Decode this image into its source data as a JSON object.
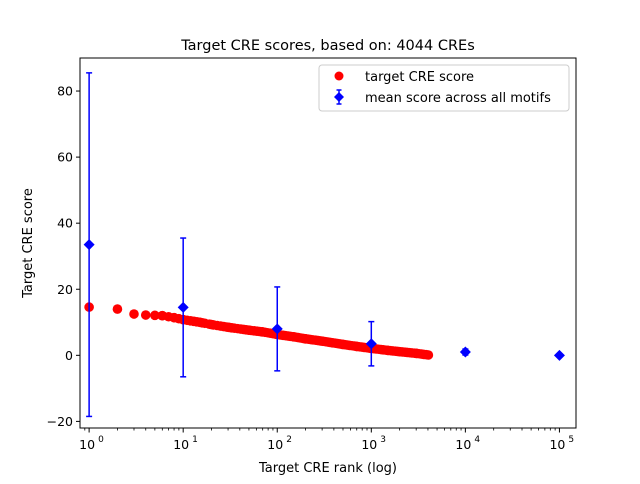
{
  "chart_data": {
    "type": "scatter",
    "title": "Target CRE scores, based on: 4044 CREs",
    "xlabel": "Target CRE rank (log)",
    "ylabel": "Target CRE score",
    "xscale": "log",
    "xlim": [
      0.8,
      150000
    ],
    "ylim": [
      -22,
      90
    ],
    "yticks": [
      -20,
      0,
      20,
      40,
      60,
      80
    ],
    "xticks": [
      {
        "value": 1,
        "base": "10",
        "exp": "0"
      },
      {
        "value": 10,
        "base": "10",
        "exp": "1"
      },
      {
        "value": 100,
        "base": "10",
        "exp": "2"
      },
      {
        "value": 1000,
        "base": "10",
        "exp": "3"
      },
      {
        "value": 10000,
        "base": "10",
        "exp": "4"
      },
      {
        "value": 100000,
        "base": "10",
        "exp": "5"
      }
    ],
    "grid": false,
    "legend": {
      "position": "top-right"
    },
    "colors": {
      "target": "#ff0000",
      "mean": "#0000ff"
    },
    "series": [
      {
        "name": "target CRE score",
        "marker": "circle",
        "x": [
          1,
          2,
          3,
          4,
          5,
          6,
          8,
          10,
          15,
          20,
          30,
          50,
          70,
          100,
          150,
          200,
          300,
          500,
          700,
          1000,
          1500,
          2000,
          3000,
          4044
        ],
        "y": [
          14.6,
          14.0,
          12.5,
          12.2,
          12.1,
          12.0,
          11.4,
          10.8,
          10.0,
          9.3,
          8.5,
          7.6,
          7.1,
          6.3,
          5.6,
          5.0,
          4.3,
          3.3,
          2.7,
          2.1,
          1.5,
          1.1,
          0.6,
          0.1
        ]
      },
      {
        "name": "mean score across all motifs",
        "marker": "diamond",
        "x": [
          1,
          10,
          100,
          1000,
          10000,
          100000
        ],
        "y": [
          33.5,
          14.5,
          8.0,
          3.5,
          1.0,
          0.0
        ],
        "yerr": [
          52.0,
          21.0,
          12.7,
          6.7,
          0.9,
          0.2
        ]
      }
    ]
  }
}
